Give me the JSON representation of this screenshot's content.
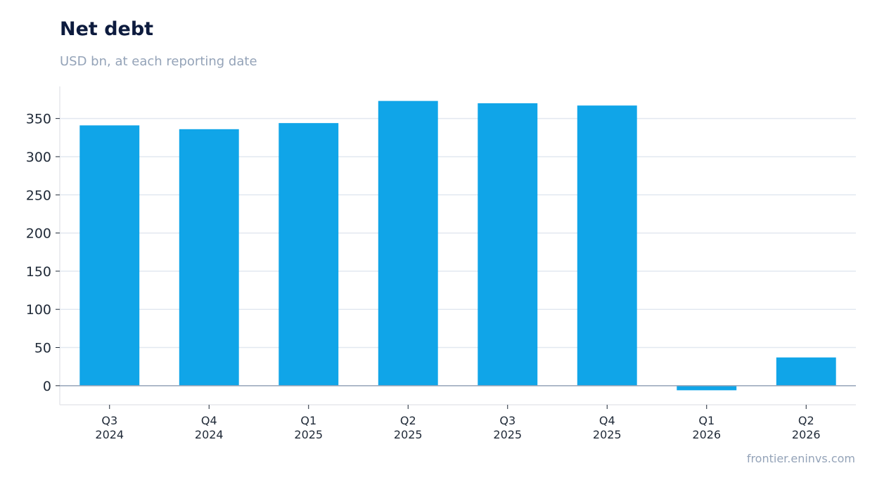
{
  "chart_data": {
    "type": "bar",
    "title": "Net debt",
    "subtitle": "USD bn, at each reporting date",
    "source": "frontier.eninvs.com",
    "categories": [
      [
        "Q3",
        "2024"
      ],
      [
        "Q4",
        "2024"
      ],
      [
        "Q1",
        "2025"
      ],
      [
        "Q2",
        "2025"
      ],
      [
        "Q3",
        "2025"
      ],
      [
        "Q4",
        "2025"
      ],
      [
        "Q1",
        "2026"
      ],
      [
        "Q2",
        "2026"
      ]
    ],
    "values": [
      341,
      336,
      344,
      373,
      370,
      367,
      -6,
      37
    ],
    "xlabel": "",
    "ylabel": "",
    "ylim": [
      -25,
      392
    ],
    "yticks": [
      0,
      50,
      100,
      150,
      200,
      250,
      300,
      350
    ],
    "grid": true,
    "bar_color": "#10a5e8",
    "grid_color": "#e2e8f0",
    "zero_line_color": "#94a3b8"
  }
}
